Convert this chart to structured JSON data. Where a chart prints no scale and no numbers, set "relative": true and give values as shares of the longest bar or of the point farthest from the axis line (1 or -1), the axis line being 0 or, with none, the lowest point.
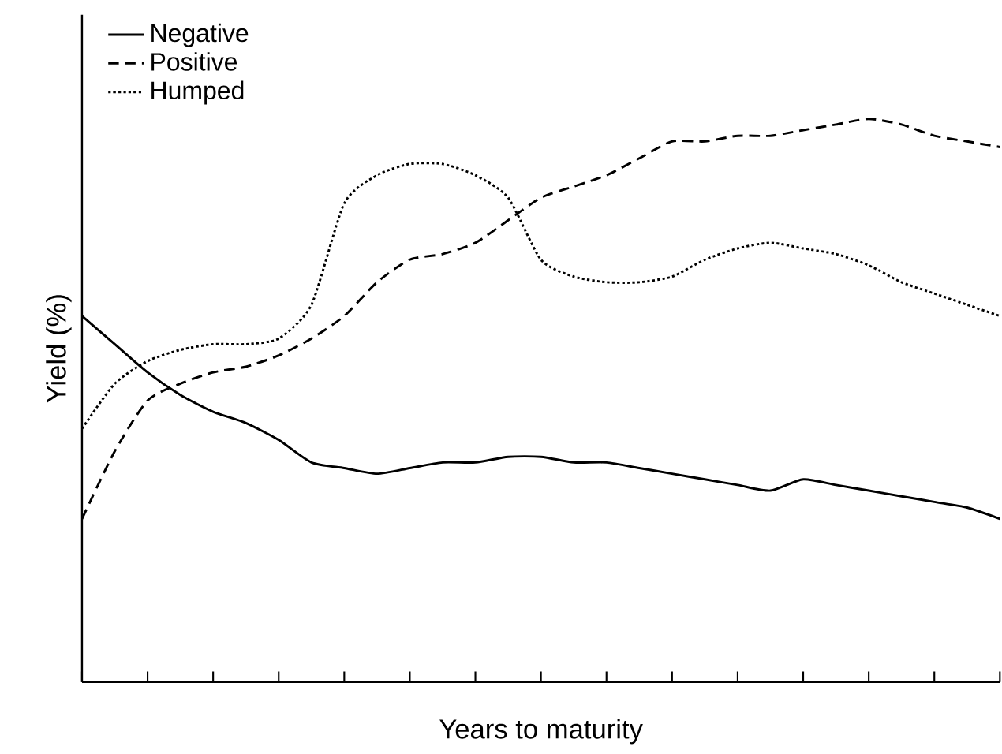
{
  "chart_data": {
    "type": "line",
    "relative": true,
    "xlabel": "Years to maturity",
    "ylabel": "Yield (%)",
    "legend": "top left",
    "categories": [
      null,
      null,
      null,
      null,
      null,
      null,
      null,
      null,
      null,
      null,
      null,
      null,
      null,
      null,
      null,
      null,
      null,
      null,
      null,
      null,
      null,
      null,
      null,
      null,
      null,
      null,
      null,
      null,
      null
    ],
    "series": [
      {
        "name": "Negative",
        "color": "#000000",
        "line_style": "solid",
        "values": [
          0.65,
          0.6,
          0.55,
          0.51,
          0.48,
          0.46,
          0.43,
          0.39,
          0.38,
          0.37,
          0.38,
          0.39,
          0.39,
          0.4,
          0.4,
          0.39,
          0.39,
          0.38,
          0.37,
          0.36,
          0.35,
          0.34,
          0.36,
          0.35,
          0.34,
          0.33,
          0.32,
          0.31,
          0.29
        ]
      },
      {
        "name": "Positive",
        "color": "#000000",
        "line_style": "dashed",
        "values": [
          0.29,
          0.41,
          0.5,
          0.53,
          0.55,
          0.56,
          0.58,
          0.61,
          0.65,
          0.71,
          0.75,
          0.76,
          0.78,
          0.82,
          0.86,
          0.88,
          0.9,
          0.93,
          0.96,
          0.96,
          0.97,
          0.97,
          0.98,
          0.99,
          1.0,
          0.99,
          0.97,
          0.96,
          0.95
        ]
      },
      {
        "name": "Humped",
        "color": "#000000",
        "line_style": "dotted",
        "values": [
          0.45,
          0.53,
          0.57,
          0.59,
          0.6,
          0.6,
          0.61,
          0.67,
          0.85,
          0.9,
          0.92,
          0.92,
          0.9,
          0.86,
          0.75,
          0.72,
          0.71,
          0.71,
          0.72,
          0.75,
          0.77,
          0.78,
          0.77,
          0.76,
          0.74,
          0.71,
          0.69,
          0.67,
          0.65
        ]
      }
    ]
  }
}
